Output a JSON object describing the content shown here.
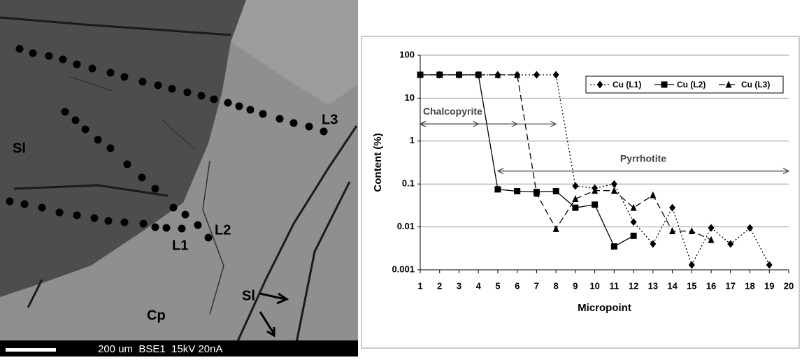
{
  "micrograph": {
    "labels": [
      "Sl",
      "L3",
      "L1",
      "L2",
      "Cp",
      "Sl"
    ],
    "scale_text": "200 um  BSE1  15kV 20nA"
  },
  "chart_data": {
    "type": "line",
    "xlabel": "Micropoint",
    "ylabel": "Content (%)",
    "x": [
      1,
      2,
      3,
      4,
      5,
      6,
      7,
      8,
      9,
      10,
      11,
      12,
      13,
      14,
      15,
      16,
      17,
      18,
      19
    ],
    "series": [
      {
        "name": "Cu (L1)",
        "color": "#000000",
        "dash": "dotted",
        "marker": "diamond",
        "values": [
          35,
          35,
          35,
          35,
          35,
          35,
          35,
          35,
          0.09,
          0.08,
          0.1,
          0.013,
          0.004,
          0.028,
          0.0013,
          0.0095,
          0.004,
          0.0095,
          0.0013
        ]
      },
      {
        "name": "Cu (L2)",
        "color": "#000000",
        "dash": "solid",
        "marker": "square",
        "values": [
          35,
          35,
          35,
          35,
          0.075,
          0.068,
          0.065,
          0.068,
          0.028,
          0.033,
          0.0035,
          0.0062,
          null,
          null,
          null,
          null,
          null,
          null,
          null
        ]
      },
      {
        "name": "Cu (L3)",
        "color": "#000000",
        "dash": "dashed",
        "marker": "triangle",
        "values": [
          35,
          35,
          35,
          35,
          35,
          35,
          0.06,
          0.009,
          0.045,
          0.07,
          0.07,
          0.028,
          0.055,
          0.008,
          0.008,
          0.005,
          null,
          null,
          null
        ]
      }
    ],
    "annotations": [
      {
        "text": "Chalcopyrite",
        "y": 2.5,
        "arrows": [
          [
            1,
            4
          ],
          [
            1,
            6
          ],
          [
            1,
            8
          ]
        ]
      },
      {
        "text": "Pyrrhotite",
        "y": 0.2,
        "arrows": [
          [
            5,
            20
          ]
        ]
      }
    ],
    "xlim": [
      1,
      20
    ],
    "xticks": [
      1,
      2,
      3,
      4,
      5,
      6,
      7,
      8,
      9,
      10,
      11,
      12,
      13,
      14,
      15,
      16,
      17,
      18,
      19,
      20
    ],
    "ylim": [
      0.001,
      100
    ],
    "yticks": [
      0.001,
      0.01,
      0.1,
      1,
      10,
      100
    ],
    "log_y": true,
    "grid": true,
    "legend": "top-right"
  }
}
